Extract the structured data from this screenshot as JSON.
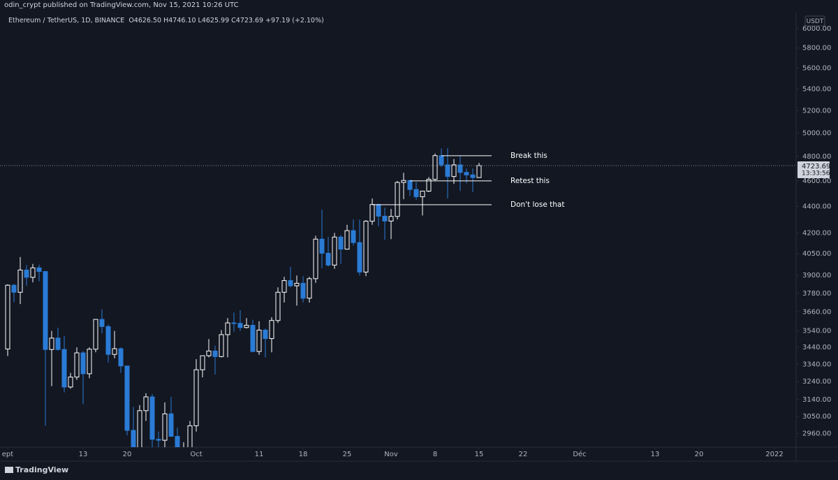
{
  "chart_data": {
    "type": "candlestick",
    "title": "odin_crypt published on TradingView.com, Nov 15, 2021 10:26 UTC",
    "symbol": "Ethereum / TetherUS, 1D, BINANCE",
    "ohlc_header": [
      {
        "label": "O",
        "text": "4626.50"
      },
      {
        "label": "H",
        "text": "4746.10"
      },
      {
        "label": "L",
        "text": "4625.99"
      },
      {
        "label": "C",
        "text": "4723.69"
      }
    ],
    "change": "+97.19 (+2.10%)",
    "currency": "USDT",
    "last_price_label": "4723.69",
    "countdown": "13:33:56",
    "footer": "TradingView",
    "up_color": "#ffffff",
    "down_color": "#2a7bd5",
    "log_scale": true,
    "x": [
      "2021-09-01",
      "2021-09-02",
      "2021-09-03",
      "2021-09-04",
      "2021-09-05",
      "2021-09-06",
      "2021-09-07",
      "2021-09-08",
      "2021-09-09",
      "2021-09-10",
      "2021-09-11",
      "2021-09-12",
      "2021-09-13",
      "2021-09-14",
      "2021-09-15",
      "2021-09-16",
      "2021-09-17",
      "2021-09-18",
      "2021-09-19",
      "2021-09-20",
      "2021-09-21",
      "2021-09-22",
      "2021-09-23",
      "2021-09-24",
      "2021-09-25",
      "2021-09-26",
      "2021-09-27",
      "2021-09-28",
      "2021-09-29",
      "2021-09-30",
      "2021-10-01",
      "2021-10-02",
      "2021-10-03",
      "2021-10-04",
      "2021-10-05",
      "2021-10-06",
      "2021-10-07",
      "2021-10-08",
      "2021-10-09",
      "2021-10-10",
      "2021-10-11",
      "2021-10-12",
      "2021-10-13",
      "2021-10-14",
      "2021-10-15",
      "2021-10-16",
      "2021-10-17",
      "2021-10-18",
      "2021-10-19",
      "2021-10-20",
      "2021-10-21",
      "2021-10-22",
      "2021-10-23",
      "2021-10-24",
      "2021-10-25",
      "2021-10-26",
      "2021-10-27",
      "2021-10-28",
      "2021-10-29",
      "2021-10-30",
      "2021-10-31",
      "2021-11-01",
      "2021-11-02",
      "2021-11-03",
      "2021-11-04",
      "2021-11-05",
      "2021-11-06",
      "2021-11-07",
      "2021-11-08",
      "2021-11-09",
      "2021-11-10",
      "2021-11-11",
      "2021-11-12",
      "2021-11-13",
      "2021-11-14",
      "2021-11-15"
    ],
    "open": [
      3430,
      3834,
      3787,
      3937,
      3887,
      3952,
      3927,
      3427,
      3496,
      3427,
      3210,
      3266,
      3407,
      3285,
      3429,
      3612,
      3567,
      3398,
      3432,
      3330,
      2976,
      2750,
      3080,
      3155,
      2930,
      2925,
      3063,
      2945,
      2807,
      2849,
      3000,
      3308,
      3390,
      3418,
      3385,
      3517,
      3590,
      3587,
      3561,
      3575,
      3415,
      3545,
      3493,
      3605,
      3787,
      3865,
      3830,
      3847,
      3748,
      3878,
      4155,
      4054,
      3971,
      4170,
      4083,
      4217,
      4130,
      3923,
      4287,
      4414,
      4325,
      4288,
      4323,
      4587,
      4603,
      4531,
      4474,
      4518,
      4612,
      4807,
      4730,
      4635,
      4730,
      4668,
      4648,
      4626.5
    ],
    "high": [
      3840,
      3842,
      4027,
      3971,
      3979,
      3974,
      3929,
      3540,
      3560,
      3510,
      3290,
      3440,
      3418,
      3440,
      3613,
      3675,
      3580,
      3540,
      3440,
      3330,
      3100,
      3110,
      3175,
      3170,
      2970,
      3125,
      3155,
      2990,
      2915,
      3025,
      3370,
      3390,
      3490,
      3450,
      3545,
      3620,
      3655,
      3670,
      3620,
      3610,
      3600,
      3555,
      3625,
      3820,
      3890,
      3960,
      3900,
      3895,
      3890,
      4180,
      4375,
      4170,
      4200,
      4185,
      4260,
      4300,
      4300,
      4295,
      4460,
      4420,
      4390,
      4380,
      4600,
      4665,
      4606,
      4590,
      4520,
      4630,
      4825,
      4868,
      4870,
      4778,
      4810,
      4700,
      4700,
      4746.1
    ],
    "low": [
      3388,
      3722,
      3710,
      3830,
      3853,
      3860,
      3000,
      3215,
      3420,
      3180,
      3200,
      3250,
      3115,
      3260,
      3410,
      3525,
      3350,
      3375,
      3290,
      2950,
      2740,
      2720,
      3025,
      2800,
      2880,
      2760,
      2960,
      2800,
      2794,
      2840,
      2970,
      3265,
      3380,
      3280,
      3380,
      3380,
      3535,
      3540,
      3555,
      3410,
      3395,
      3380,
      3410,
      3590,
      3720,
      3820,
      3700,
      3720,
      3720,
      3850,
      3950,
      3960,
      3945,
      3980,
      4080,
      4110,
      3900,
      3895,
      4260,
      4250,
      4150,
      4155,
      4300,
      4455,
      4480,
      4450,
      4330,
      4510,
      4600,
      4712,
      4460,
      4575,
      4520,
      4580,
      4510,
      4625.99
    ],
    "close": [
      3834,
      3787,
      3937,
      3887,
      3952,
      3927,
      3427,
      3496,
      3427,
      3210,
      3266,
      3407,
      3285,
      3429,
      3612,
      3567,
      3398,
      3432,
      3330,
      2976,
      2750,
      3080,
      3155,
      2930,
      2925,
      3063,
      2945,
      2807,
      2849,
      3000,
      3308,
      3390,
      3418,
      3385,
      3517,
      3590,
      3587,
      3561,
      3575,
      3415,
      3545,
      3493,
      3605,
      3787,
      3865,
      3830,
      3847,
      3748,
      3878,
      4155,
      4054,
      3971,
      4170,
      4083,
      4217,
      4130,
      3923,
      4287,
      4414,
      4325,
      4288,
      4323,
      4587,
      4603,
      4531,
      4474,
      4518,
      4612,
      4807,
      4730,
      4635,
      4730,
      4668,
      4648,
      4626.5,
      4723.69
    ],
    "xlim": [
      "2021-08-31",
      "2022-01-05"
    ],
    "xticks": [
      {
        "value": "2021-09-01",
        "label": "ept"
      },
      {
        "value": "2021-09-13",
        "label": "13"
      },
      {
        "value": "2021-09-20",
        "label": "20"
      },
      {
        "value": "2021-10-01",
        "label": "Oct"
      },
      {
        "value": "2021-10-11",
        "label": "11"
      },
      {
        "value": "2021-10-18",
        "label": "18"
      },
      {
        "value": "2021-10-25",
        "label": "25"
      },
      {
        "value": "2021-11-01",
        "label": "Nov"
      },
      {
        "value": "2021-11-08",
        "label": "8"
      },
      {
        "value": "2021-11-15",
        "label": "15"
      },
      {
        "value": "2021-11-22",
        "label": "22"
      },
      {
        "value": "2021-12-01",
        "label": "Déc"
      },
      {
        "value": "2021-12-13",
        "label": "13"
      },
      {
        "value": "2021-12-20",
        "label": "20"
      },
      {
        "value": "2022-01-01",
        "label": "2022"
      }
    ],
    "ylim": [
      2890,
      6170
    ],
    "yticks": [
      {
        "value": 2960,
        "label": "2960.00"
      },
      {
        "value": 3050,
        "label": "3050.00"
      },
      {
        "value": 3140,
        "label": "3140.00"
      },
      {
        "value": 3240,
        "label": "3240.00"
      },
      {
        "value": 3340,
        "label": "3340.00"
      },
      {
        "value": 3440,
        "label": "3440.00"
      },
      {
        "value": 3540,
        "label": "3540.00"
      },
      {
        "value": 3660,
        "label": "3660.00"
      },
      {
        "value": 3780,
        "label": "3780.00"
      },
      {
        "value": 3900,
        "label": "3900.00"
      },
      {
        "value": 4050,
        "label": "4050.00"
      },
      {
        "value": 4200,
        "label": "4200.00"
      },
      {
        "value": 4400,
        "label": "4400.00"
      },
      {
        "value": 4600,
        "label": "4600.00"
      },
      {
        "value": 4800,
        "label": "4800.00"
      },
      {
        "value": 5000,
        "label": "5000.00"
      },
      {
        "value": 5200,
        "label": "5200.00"
      },
      {
        "value": 5400,
        "label": "5400.00"
      },
      {
        "value": 5600,
        "label": "5600.00"
      },
      {
        "value": 5800,
        "label": "5800.00"
      },
      {
        "value": 6000,
        "label": "6000.00"
      }
    ],
    "annotations": [
      {
        "text": "Break this",
        "price": 4806,
        "x0": "2021-11-09",
        "x1": "2021-11-17"
      },
      {
        "text": "Retest this",
        "price": 4600,
        "x0": "2021-11-04",
        "x1": "2021-11-17"
      },
      {
        "text": "Don't lose that",
        "price": 4412,
        "x0": "2021-10-29",
        "x1": "2021-11-17"
      }
    ]
  }
}
